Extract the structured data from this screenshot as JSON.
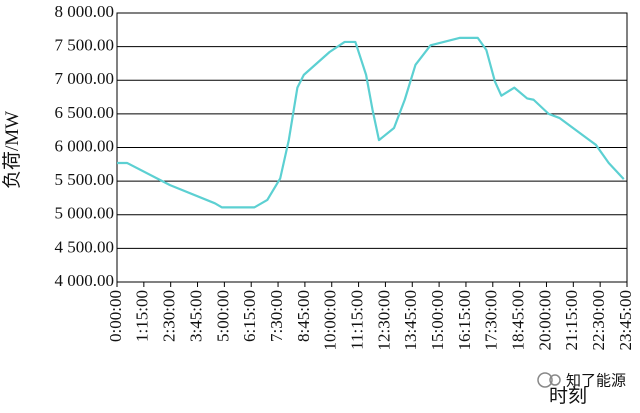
{
  "chart_data": {
    "type": "line",
    "x_label": "时刻",
    "y_label": "负荷/MW",
    "watermark": "知了能源",
    "x": [
      0,
      0.47,
      2.47,
      4.56,
      4.88,
      6.4,
      7.0,
      7.6,
      8.0,
      8.4,
      8.7,
      9.9,
      10.6,
      11.1,
      11.6,
      11.9,
      12.2,
      12.9,
      13.4,
      13.9,
      14.6,
      15.95,
      16.8,
      17.2,
      17.6,
      17.9,
      18.5,
      19.1,
      19.4,
      20.1,
      20.6,
      22.0,
      22.3,
      22.9,
      23.6
    ],
    "values": [
      5770,
      5770,
      5440,
      5170,
      5110,
      5110,
      5220,
      5540,
      6110,
      6890,
      7080,
      7420,
      7570,
      7570,
      7080,
      6560,
      6110,
      6290,
      6710,
      7230,
      7520,
      7630,
      7630,
      7450,
      6980,
      6770,
      6890,
      6730,
      6710,
      6500,
      6440,
      6110,
      6040,
      5770,
      5530
    ],
    "color": "#5cd0d2",
    "xlim": [
      0,
      23.75
    ],
    "xticks": [
      {
        "value": 0,
        "label": "0:00:00"
      },
      {
        "value": 1.25,
        "label": "1:15:00"
      },
      {
        "value": 2.5,
        "label": "2:30:00"
      },
      {
        "value": 3.75,
        "label": "3:45:00"
      },
      {
        "value": 5,
        "label": "5:00:00"
      },
      {
        "value": 6.25,
        "label": "6:15:00"
      },
      {
        "value": 7.5,
        "label": "7:30:00"
      },
      {
        "value": 8.75,
        "label": "8:45:00"
      },
      {
        "value": 10,
        "label": "10:00:00"
      },
      {
        "value": 11.25,
        "label": "11:15:00"
      },
      {
        "value": 12.5,
        "label": "12:30:00"
      },
      {
        "value": 13.75,
        "label": "13:45:00"
      },
      {
        "value": 15,
        "label": "15:00:00"
      },
      {
        "value": 16.25,
        "label": "16:15:00"
      },
      {
        "value": 17.5,
        "label": "17:30:00"
      },
      {
        "value": 18.75,
        "label": "18:45:00"
      },
      {
        "value": 20,
        "label": "20:00:00"
      },
      {
        "value": 21.25,
        "label": "21:15:00"
      },
      {
        "value": 22.5,
        "label": "22:30:00"
      },
      {
        "value": 23.75,
        "label": "23:45:00"
      }
    ],
    "ylim": [
      4000,
      8000
    ],
    "yticks": [
      {
        "value": 4000,
        "label": "4 000.00"
      },
      {
        "value": 4500,
        "label": "4 500.00"
      },
      {
        "value": 5000,
        "label": "5 000.00"
      },
      {
        "value": 5500,
        "label": "5 500.00"
      },
      {
        "value": 6000,
        "label": "6 000.00"
      },
      {
        "value": 6500,
        "label": "6 500.00"
      },
      {
        "value": 7000,
        "label": "7 000.00"
      },
      {
        "value": 7500,
        "label": "7 500.00"
      },
      {
        "value": 8000,
        "label": "8 000.00"
      }
    ],
    "grid": true
  }
}
